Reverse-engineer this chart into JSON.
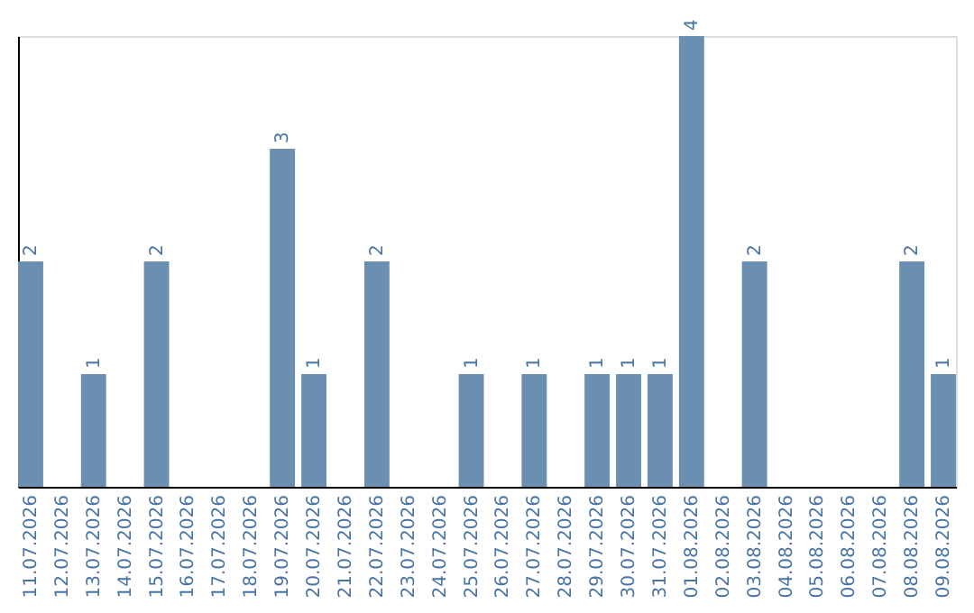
{
  "chart_data": {
    "type": "bar",
    "categories": [
      "11.07.2026",
      "12.07.2026",
      "13.07.2026",
      "14.07.2026",
      "15.07.2026",
      "16.07.2026",
      "17.07.2026",
      "18.07.2026",
      "19.07.2026",
      "20.07.2026",
      "21.07.2026",
      "22.07.2026",
      "23.07.2026",
      "24.07.2026",
      "25.07.2026",
      "26.07.2026",
      "27.07.2026",
      "28.07.2026",
      "29.07.2026",
      "30.07.2026",
      "31.07.2026",
      "01.08.2026",
      "02.08.2026",
      "03.08.2026",
      "04.08.2026",
      "05.08.2026",
      "06.08.2026",
      "07.08.2026",
      "08.08.2026",
      "09.08.2026"
    ],
    "values": [
      2,
      0,
      1,
      0,
      2,
      0,
      0,
      0,
      3,
      1,
      0,
      2,
      0,
      0,
      1,
      0,
      1,
      0,
      1,
      1,
      1,
      4,
      0,
      2,
      0,
      0,
      0,
      0,
      2,
      1
    ],
    "value_labels": [
      "2",
      null,
      "1",
      null,
      "2",
      null,
      null,
      null,
      "3",
      "1",
      null,
      "2",
      null,
      null,
      "1",
      null,
      "1",
      null,
      "1",
      "1",
      "1",
      "4",
      null,
      "2",
      null,
      null,
      null,
      null,
      "2",
      "1"
    ],
    "color": "#6b8fb0",
    "tick_labels": "x",
    "grid": false
  }
}
